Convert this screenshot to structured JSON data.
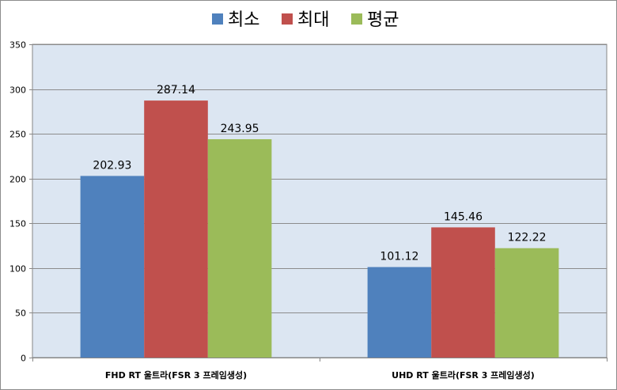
{
  "chart_data": {
    "type": "bar",
    "categories": [
      "FHD RT 울트라(FSR 3 프레임생성)",
      "UHD RT 울트라(FSR 3 프레임생성)"
    ],
    "series": [
      {
        "name": "최소",
        "values": [
          202.93,
          101.12
        ],
        "color": "#4f81bd"
      },
      {
        "name": "최대",
        "values": [
          287.14,
          145.46
        ],
        "color": "#c0504d"
      },
      {
        "name": "평균",
        "values": [
          243.95,
          122.22
        ],
        "color": "#9bbb59"
      }
    ],
    "value_labels": [
      [
        "202.93",
        "101.12"
      ],
      [
        "287.14",
        "145.46"
      ],
      [
        "243.95",
        "122.22"
      ]
    ],
    "ylim": [
      0,
      350
    ],
    "yticks": [
      "0",
      "50",
      "100",
      "150",
      "200",
      "250",
      "300",
      "350"
    ],
    "grid": true,
    "legend_position": "top",
    "plot_background": "#dce6f2"
  }
}
